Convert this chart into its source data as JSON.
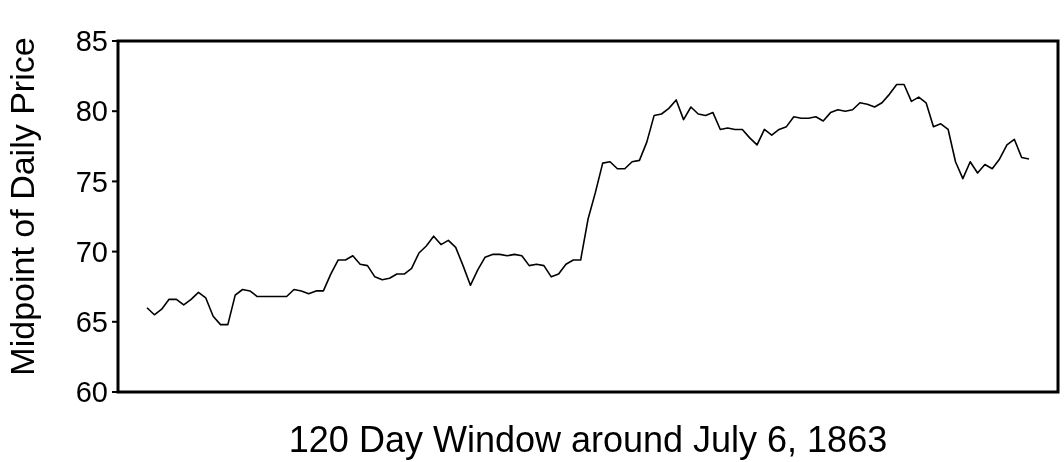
{
  "chart_data": {
    "type": "line",
    "xlabel": "120 Day Window around July 6, 1863",
    "ylabel": "Midpoint of Daily Price",
    "categories": [
      null,
      null,
      null,
      null,
      null,
      null,
      null,
      null,
      null,
      null,
      null,
      null,
      null,
      null,
      null,
      null,
      null,
      null,
      null,
      null,
      null,
      null,
      null,
      null,
      null,
      null,
      null,
      null,
      null,
      null,
      null,
      null,
      null,
      null,
      null,
      null,
      null,
      null,
      null,
      null,
      null,
      null,
      null,
      null,
      null,
      null,
      null,
      null,
      null,
      null,
      null,
      null,
      null,
      null,
      null,
      null,
      null,
      null,
      null,
      null,
      null,
      null,
      null,
      null,
      null,
      null,
      null,
      null,
      null,
      null,
      null,
      null,
      null,
      null,
      null,
      null,
      null,
      null,
      null,
      null,
      null,
      null,
      null,
      null,
      null,
      null,
      null,
      null,
      null,
      null,
      null,
      null,
      null,
      null,
      null,
      null,
      null,
      null,
      null,
      null,
      null,
      null,
      null,
      null,
      null,
      null,
      null,
      null,
      null,
      null,
      null,
      null,
      null,
      null,
      null,
      null,
      null,
      null,
      null,
      null,
      null
    ],
    "series": [
      {
        "color": "#000000",
        "values": [
          66.0,
          65.5,
          65.9,
          66.6,
          66.6,
          66.2,
          66.6,
          67.1,
          66.7,
          65.4,
          64.8,
          64.8,
          66.9,
          67.3,
          67.2,
          66.8,
          66.8,
          66.8,
          66.8,
          66.8,
          67.3,
          67.2,
          67.0,
          67.2,
          67.2,
          68.4,
          69.4,
          69.4,
          69.7,
          69.1,
          69.0,
          68.2,
          68.0,
          68.1,
          68.4,
          68.4,
          68.8,
          69.9,
          70.4,
          71.1,
          70.5,
          70.8,
          70.3,
          69.0,
          67.6,
          68.7,
          69.6,
          69.8,
          69.8,
          69.7,
          69.8,
          69.7,
          69.0,
          69.1,
          69.0,
          68.2,
          68.4,
          69.1,
          69.4,
          69.4,
          72.3,
          74.2,
          76.3,
          76.4,
          75.9,
          75.9,
          76.4,
          76.5,
          77.8,
          79.7,
          79.8,
          80.2,
          80.8,
          79.4,
          80.3,
          79.8,
          79.7,
          79.9,
          78.7,
          78.8,
          78.7,
          78.7,
          78.1,
          77.6,
          78.7,
          78.3,
          78.7,
          78.9,
          79.6,
          79.5,
          79.5,
          79.6,
          79.3,
          79.9,
          80.1,
          80.0,
          80.1,
          80.6,
          80.5,
          80.3,
          80.6,
          81.2,
          81.9,
          81.9,
          80.7,
          81.0,
          80.6,
          78.9,
          79.1,
          78.7,
          76.4,
          75.2,
          76.4,
          75.6,
          76.2,
          75.9,
          76.6,
          77.6,
          78.0,
          76.7,
          76.6
        ]
      }
    ],
    "ylim": [
      60,
      85
    ],
    "yticks": [
      60,
      65,
      70,
      75,
      80,
      85
    ],
    "line_style": "solid"
  }
}
